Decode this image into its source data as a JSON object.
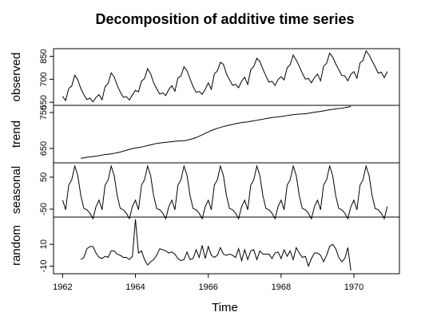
{
  "chart_data": {
    "type": "line",
    "title": "Decomposition of additive time series",
    "xlabel": "Time",
    "x_start": 1962,
    "x_end": 1971,
    "xlim": [
      1961.75,
      1971.25
    ],
    "x_ticks": [
      "1962",
      "1964",
      "1966",
      "1968",
      "1970"
    ],
    "x_tick_values": [
      1962,
      1964,
      1966,
      1968,
      1970
    ],
    "frequency": 12,
    "panels": [
      {
        "name": "observed",
        "ylabel": "observed",
        "ylim": [
          530,
          900
        ],
        "y_ticks": [
          550,
          700,
          850
        ],
        "y_tick_labels": [
          "550",
          "700",
          "850"
        ],
        "values": [
          589,
          561,
          640,
          656,
          727,
          697,
          640,
          599,
          568,
          577,
          553,
          582,
          600,
          566,
          653,
          673,
          742,
          716,
          660,
          617,
          583,
          587,
          565,
          598,
          628,
          618,
          688,
          705,
          770,
          736,
          678,
          639,
          604,
          611,
          594,
          634,
          658,
          622,
          709,
          722,
          782,
          756,
          702,
          653,
          615,
          621,
          602,
          635,
          677,
          635,
          736,
          755,
          811,
          798,
          735,
          697,
          661,
          667,
          645,
          688,
          713,
          667,
          762,
          784,
          837,
          817,
          767,
          722,
          681,
          687,
          660,
          698,
          717,
          696,
          775,
          796,
          858,
          826,
          783,
          740,
          701,
          706,
          677,
          711,
          734,
          690,
          785,
          805,
          871,
          845,
          801,
          764,
          725,
          723,
          690,
          734,
          750,
          707,
          807,
          824,
          886,
          859,
          819,
          783,
          740,
          747,
          711,
          751
        ]
      },
      {
        "name": "trend",
        "ylabel": "trend",
        "ylim": [
          610,
          770
        ],
        "y_ticks": [
          650,
          750
        ],
        "y_tick_labels": [
          "650",
          "750"
        ],
        "values": [
          null,
          null,
          null,
          null,
          null,
          null,
          622.5,
          624.0,
          625.5,
          626.5,
          627.5,
          628.5,
          630,
          631.5,
          633,
          634,
          635,
          636.5,
          638,
          640,
          642.5,
          645,
          647.5,
          649.5,
          651,
          652.5,
          654,
          656,
          658,
          660,
          662,
          664,
          665,
          666,
          667,
          668,
          669,
          670,
          670.5,
          671,
          671.5,
          673,
          675,
          677.5,
          680.5,
          684,
          688,
          692,
          696,
          700,
          703,
          706,
          708.5,
          711,
          713,
          715,
          717,
          719,
          720.5,
          722,
          723,
          724,
          725.5,
          727,
          728.5,
          730,
          731.5,
          733,
          734.5,
          736,
          737,
          738,
          739,
          740,
          741.5,
          743,
          744,
          745,
          745.5,
          746,
          746.5,
          748,
          749.5,
          751,
          752,
          753,
          754.5,
          756,
          757.5,
          759,
          760,
          761,
          762,
          763.5,
          765,
          767,
          null,
          null,
          null,
          null,
          null,
          null
        ]
      },
      {
        "name": "seasonal",
        "ylabel": "seasonal",
        "ylim": [
          -75,
          95
        ],
        "y_ticks": [
          -50,
          50
        ],
        "y_tick_labels": [
          "-50",
          "50"
        ],
        "values": [
          -22,
          -52,
          25,
          42,
          85,
          55,
          -8,
          -48,
          -52,
          -63,
          -80,
          -42,
          -22,
          -52,
          25,
          42,
          85,
          55,
          -8,
          -48,
          -52,
          -63,
          -80,
          -42,
          -22,
          -52,
          25,
          42,
          85,
          55,
          -8,
          -48,
          -52,
          -63,
          -80,
          -42,
          -22,
          -52,
          25,
          42,
          85,
          55,
          -8,
          -48,
          -52,
          -63,
          -80,
          -42,
          -22,
          -52,
          25,
          42,
          85,
          55,
          -8,
          -48,
          -52,
          -63,
          -80,
          -42,
          -22,
          -52,
          25,
          42,
          85,
          55,
          -8,
          -48,
          -52,
          -63,
          -80,
          -42,
          -22,
          -52,
          25,
          42,
          85,
          55,
          -8,
          -48,
          -52,
          -63,
          -80,
          -42,
          -22,
          -52,
          25,
          42,
          85,
          55,
          -8,
          -48,
          -52,
          -63,
          -80,
          -42,
          -22,
          -52,
          25,
          42,
          85,
          55,
          -8,
          -48,
          -52,
          -63,
          -80,
          -42
        ]
      },
      {
        "name": "random",
        "ylabel": "random",
        "ylim": [
          -17,
          35
        ],
        "y_ticks": [
          -10,
          10
        ],
        "y_tick_labels": [
          "-10",
          "10"
        ],
        "values": [
          null,
          null,
          null,
          null,
          null,
          null,
          -4,
          -2,
          6,
          8,
          8,
          2,
          -2,
          -3,
          -1,
          -2,
          4,
          4,
          1,
          0,
          -2,
          -2,
          -4,
          -1,
          33,
          2,
          4,
          -4,
          -9,
          -6,
          -4,
          0,
          6,
          5,
          4,
          2,
          3,
          1,
          -3,
          -5,
          -4,
          3,
          -4,
          -3,
          5,
          -2,
          9,
          -3,
          8,
          0,
          -2,
          0,
          7,
          1,
          0,
          1,
          0,
          -2,
          6,
          -5,
          5,
          -4,
          4,
          5,
          -4,
          4,
          1,
          1,
          1,
          -3,
          2,
          3,
          -3,
          5,
          -1,
          4,
          -4,
          7,
          2,
          -2,
          -1,
          -10,
          -3,
          2,
          2,
          0,
          -6,
          0,
          8,
          10,
          6,
          -2,
          -6,
          -3,
          7,
          -14,
          null,
          null,
          null,
          null,
          null,
          null
        ]
      }
    ]
  }
}
